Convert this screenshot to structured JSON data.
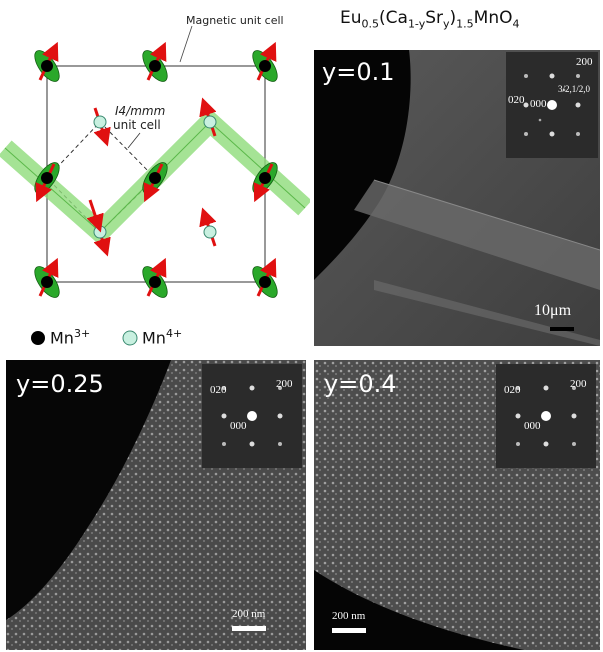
{
  "title": {
    "text": "Eu",
    "sub1": "0.5",
    "part2": "(Ca",
    "sub2": "1-y",
    "part3": "Sr",
    "sub3": "y",
    "part4": ")",
    "sub4": "1.5",
    "part5": "MnO",
    "sub5": "4"
  },
  "schematic": {
    "magnetic_label": "Magnetic unit cell",
    "i4mmm_label": "I4/mmm",
    "unit_cell_label": "unit cell",
    "legend": {
      "mn3": "Mn",
      "mn3_sup": "3+",
      "mn4": "Mn",
      "mn4_sup": "4+"
    },
    "colors": {
      "mn3": "#000000",
      "mn4": "#c8f0e0",
      "orbital": "#2aa82a",
      "spin": "#e01010",
      "stripe": "#8fdc7a"
    }
  },
  "panels": [
    {
      "label": "y=0.1",
      "saed": {
        "spots": [
          "200",
          "3/2,1/2,0",
          "020",
          "000"
        ]
      },
      "scale": "10μm"
    },
    {
      "label": "y=0.25",
      "saed": {
        "spots": [
          "020",
          "200",
          "000"
        ]
      },
      "scale": "200 nm"
    },
    {
      "label": "y=0.4",
      "saed": {
        "spots": [
          "020",
          "200",
          "000"
        ]
      },
      "scale": "200 nm"
    }
  ]
}
